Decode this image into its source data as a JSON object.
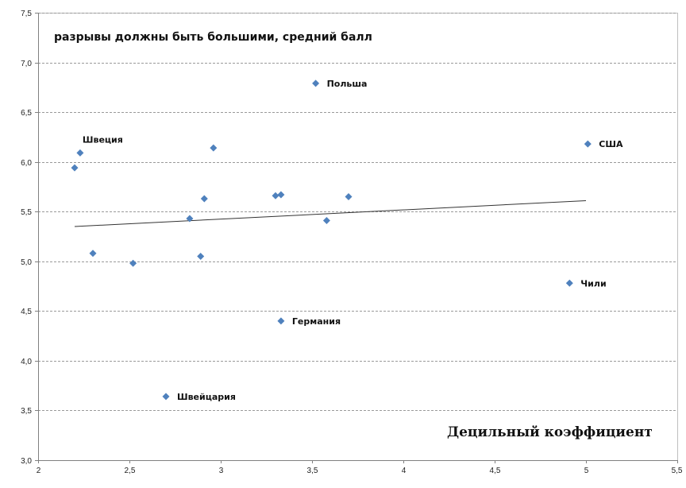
{
  "chart_data": {
    "type": "scatter",
    "title": "разрывы должны быть большими, средний балл",
    "xlabel": "Децильный коэффициент",
    "ylabel": "",
    "xlim": [
      2,
      5.5
    ],
    "ylim": [
      3.0,
      7.5
    ],
    "xticks": [
      "2",
      "2,5",
      "3",
      "3,5",
      "4",
      "4,5",
      "5",
      "5,5"
    ],
    "yticks": [
      "3,0",
      "3,5",
      "4,0",
      "4,5",
      "5,0",
      "5,5",
      "6,0",
      "6,5",
      "7,0",
      "7,5"
    ],
    "grid": "horizontal dashed",
    "marker_color": "#4f81bd",
    "points": [
      {
        "x": 2.2,
        "y": 5.94,
        "label": ""
      },
      {
        "x": 2.23,
        "y": 6.09,
        "label": "Швеция"
      },
      {
        "x": 2.3,
        "y": 5.08,
        "label": ""
      },
      {
        "x": 2.52,
        "y": 4.98,
        "label": ""
      },
      {
        "x": 2.7,
        "y": 3.64,
        "label": "Швейцария"
      },
      {
        "x": 2.83,
        "y": 5.43,
        "label": ""
      },
      {
        "x": 2.89,
        "y": 5.05,
        "label": ""
      },
      {
        "x": 2.91,
        "y": 5.63,
        "label": ""
      },
      {
        "x": 2.96,
        "y": 6.14,
        "label": ""
      },
      {
        "x": 3.3,
        "y": 5.66,
        "label": ""
      },
      {
        "x": 3.33,
        "y": 5.67,
        "label": ""
      },
      {
        "x": 3.33,
        "y": 4.4,
        "label": "Германия"
      },
      {
        "x": 3.52,
        "y": 6.79,
        "label": "Польша"
      },
      {
        "x": 3.58,
        "y": 5.41,
        "label": ""
      },
      {
        "x": 3.7,
        "y": 5.65,
        "label": ""
      },
      {
        "x": 4.91,
        "y": 4.78,
        "label": "Чили"
      },
      {
        "x": 5.01,
        "y": 6.18,
        "label": "США"
      }
    ],
    "trendline": {
      "x": [
        2.2,
        5.0
      ],
      "y": [
        5.35,
        5.61
      ]
    }
  }
}
